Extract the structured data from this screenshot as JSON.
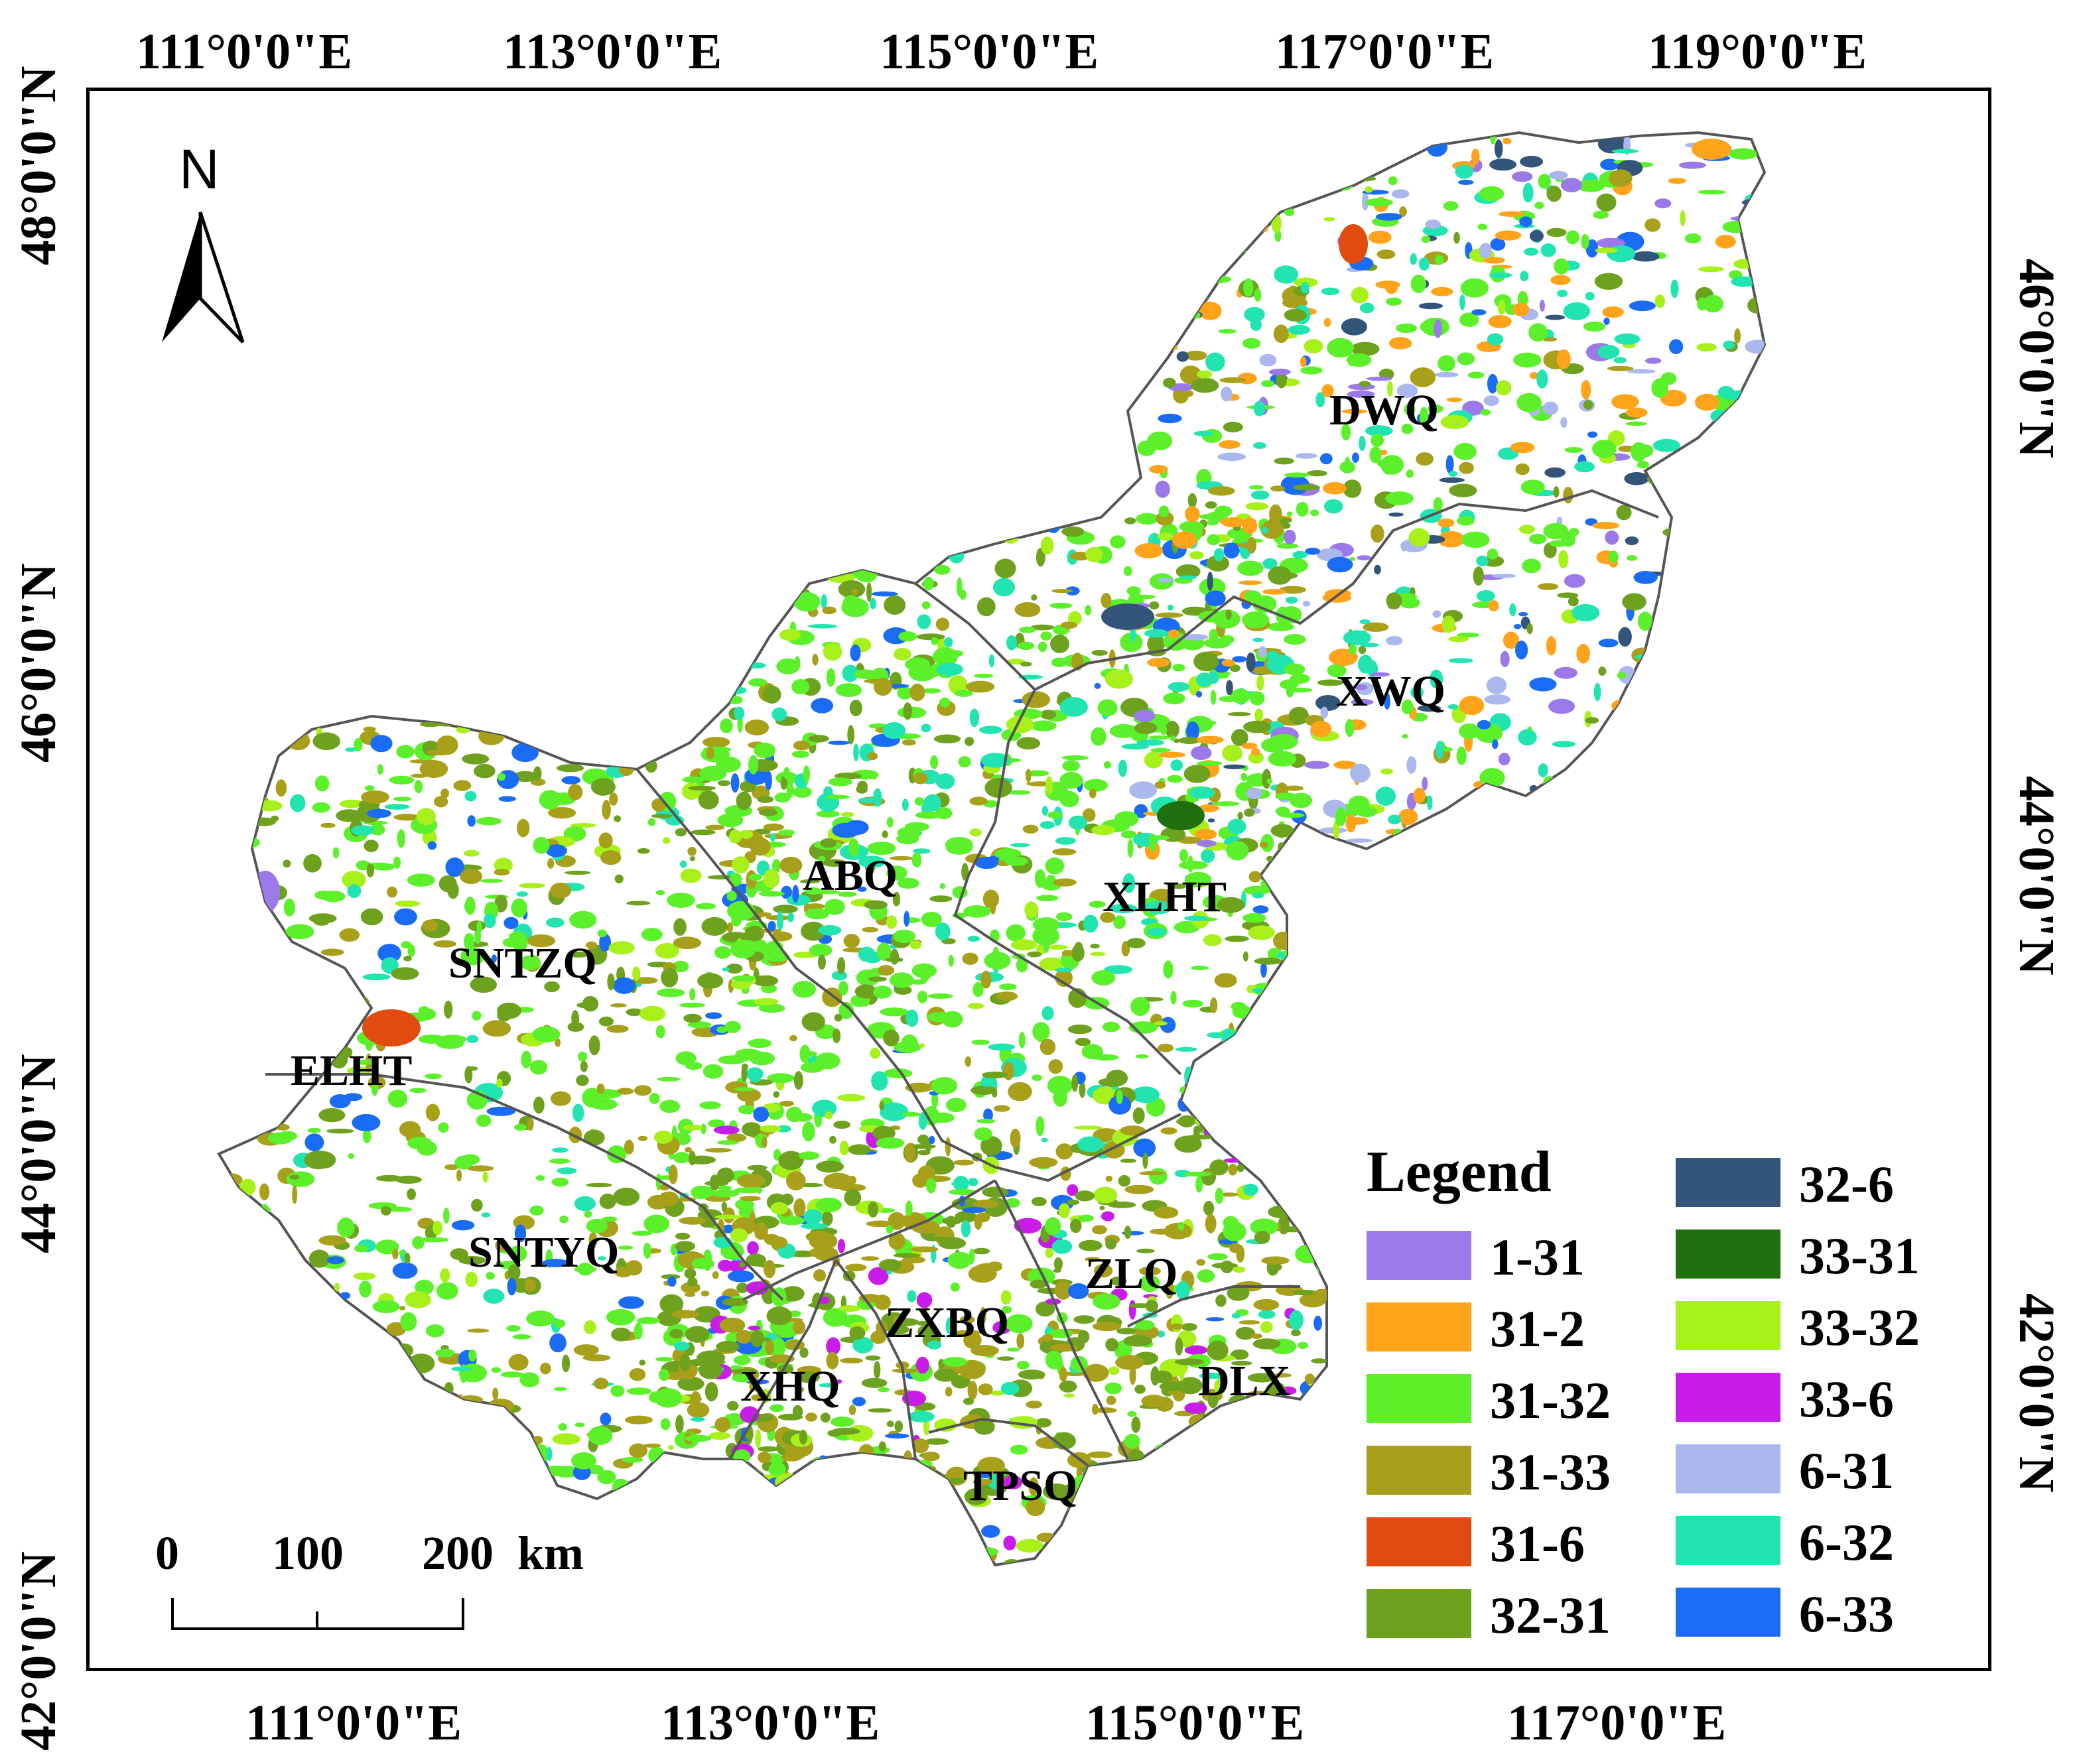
{
  "map": {
    "top_longitudes": [
      "111°0'0\"E",
      "113°0'0\"E",
      "115°0'0\"E",
      "117°0'0\"E",
      "119°0'0\"E"
    ],
    "bottom_longitudes": [
      "111°0'0\"E",
      "113°0'0\"E",
      "115°0'0\"E",
      "117°0'0\"E"
    ],
    "left_latitudes": [
      "48°0'0\"N",
      "46°0'0\"N",
      "44°0'0\"N",
      "42°0'0\"N"
    ],
    "right_latitudes": [
      "46°0'0\"N",
      "44°0'0\"N",
      "42°0'0\"N"
    ],
    "north_arrow_label": "N",
    "regions": [
      "DWQ",
      "XWQ",
      "ABQ",
      "XLHT",
      "SNTZQ",
      "ELHT",
      "SNTYQ",
      "ZLQ",
      "ZXBQ",
      "XHQ",
      "DLX",
      "TPSQ"
    ],
    "scale_bar": {
      "ticks": [
        "0",
        "100",
        "200"
      ],
      "unit": "km"
    },
    "legend": {
      "title": "Legend",
      "items": [
        {
          "label": "1-31",
          "color": "#9b79e8"
        },
        {
          "label": "31-2",
          "color": "#ffa31a"
        },
        {
          "label": "31-32",
          "color": "#5cf02a"
        },
        {
          "label": "31-33",
          "color": "#a8a01a"
        },
        {
          "label": "31-6",
          "color": "#e24b10"
        },
        {
          "label": "32-31",
          "color": "#6ea11e"
        },
        {
          "label": "32-6",
          "color": "#34557a"
        },
        {
          "label": "33-31",
          "color": "#207010"
        },
        {
          "label": "33-32",
          "color": "#a8f01a"
        },
        {
          "label": "33-6",
          "color": "#c81de8"
        },
        {
          "label": "6-31",
          "color": "#aab8ee"
        },
        {
          "label": "6-32",
          "color": "#22e4b0"
        },
        {
          "label": "6-33",
          "color": "#1a6cf5"
        }
      ]
    },
    "colors": {
      "boundary": "#555555",
      "base_fill": "#ffffff"
    }
  }
}
